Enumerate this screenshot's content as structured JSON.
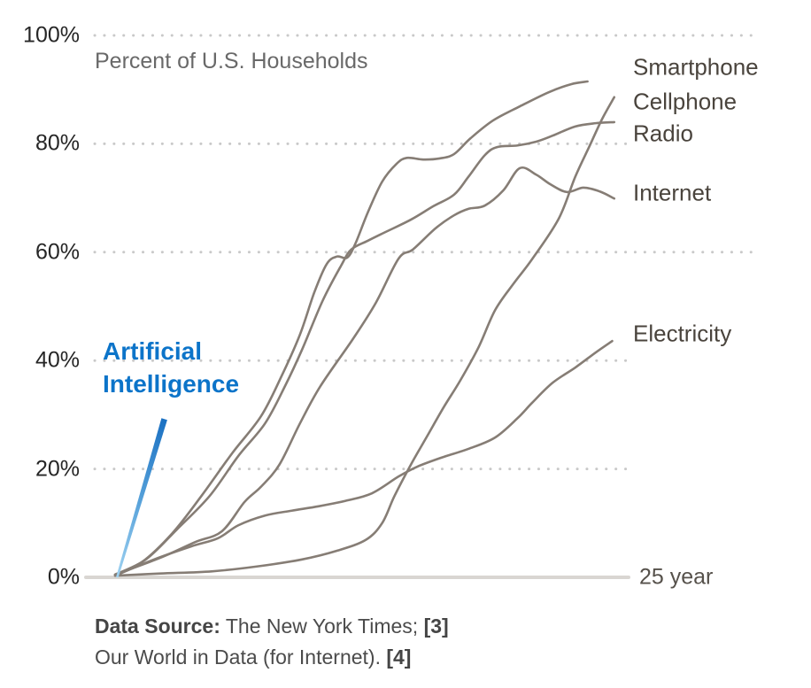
{
  "title": "Percent of U.S. Households",
  "x_axis": {
    "label": "25 year",
    "max_years": 25
  },
  "y_axis": {
    "ticks": [
      {
        "label": "0%",
        "pct": 0
      },
      {
        "label": "20%",
        "pct": 20
      },
      {
        "label": "40%",
        "pct": 40
      },
      {
        "label": "60%",
        "pct": 60
      },
      {
        "label": "80%",
        "pct": 80
      },
      {
        "label": "100%",
        "pct": 100
      }
    ]
  },
  "gridlines": [
    {
      "pct": 100,
      "extent": "wide"
    },
    {
      "pct": 80,
      "extent": "plot"
    },
    {
      "pct": 60,
      "extent": "wide"
    },
    {
      "pct": 40,
      "extent": "plot"
    },
    {
      "pct": 20,
      "extent": "plot"
    }
  ],
  "colors": {
    "line_gray": "#867d75",
    "baseline": "#d9d6d2",
    "grid_dot": "#c9c9c9",
    "ai_text": "#0c74c9",
    "ai_gradient": [
      "#9fd2f1",
      "#55a0d9",
      "#1a70c2"
    ]
  },
  "ai_label": {
    "line1": "Artificial",
    "line2": "Intelligence"
  },
  "right_labels": [
    {
      "text": "Smartphone",
      "pct": 94.1
    },
    {
      "text": "Cellphone",
      "pct": 87.7
    },
    {
      "text": "Radio",
      "pct": 81.9
    },
    {
      "text": "Internet",
      "pct": 70.9
    },
    {
      "text": "Electricity",
      "pct": 44.9
    }
  ],
  "source": {
    "bold1": "Data Source:",
    "text1": " The New York Times; ",
    "ref1": "[3]",
    "text2": "Our World in Data (for Internet). ",
    "ref2": "[4]"
  },
  "chart_data": {
    "type": "line",
    "title": "Percent of U.S. Households",
    "xlabel": "years since introduction (axis spans 25 years)",
    "ylabel": "percent of U.S. households",
    "x_range": [
      0,
      25
    ],
    "y_range": [
      0,
      100
    ],
    "grid": "dotted horizontal",
    "legend_position": "right edge, inline labels",
    "series": [
      {
        "name": "Artificial Intelligence",
        "style": "thick blue gradient",
        "points": [
          [
            0.1,
            0
          ],
          [
            2.4,
            29.2
          ]
        ]
      },
      {
        "name": "Smartphone",
        "style": "gray",
        "points": [
          [
            0,
            0.5
          ],
          [
            1.3,
            2.8
          ],
          [
            2.8,
            8.2
          ],
          [
            4.2,
            15
          ],
          [
            5.7,
            22.9
          ],
          [
            7.1,
            29.7
          ],
          [
            8.1,
            37.1
          ],
          [
            9,
            44.8
          ],
          [
            9.7,
            52.6
          ],
          [
            10.3,
            57.8
          ],
          [
            10.8,
            59.2
          ],
          [
            11.3,
            59
          ],
          [
            11.7,
            61.6
          ],
          [
            12.3,
            67.3
          ],
          [
            13,
            73
          ],
          [
            13.7,
            76.3
          ],
          [
            14.2,
            77.4
          ],
          [
            15,
            77.1
          ],
          [
            15.8,
            77.3
          ],
          [
            16.5,
            78.1
          ],
          [
            17.3,
            81
          ],
          [
            18.4,
            84.3
          ],
          [
            19.7,
            86.9
          ],
          [
            21.1,
            89.5
          ],
          [
            22.2,
            91
          ],
          [
            23,
            91.5
          ]
        ]
      },
      {
        "name": "Cellphone",
        "style": "gray",
        "points": [
          [
            0,
            0.3
          ],
          [
            2.2,
            0.7
          ],
          [
            4.7,
            1.1
          ],
          [
            6.9,
            2
          ],
          [
            9.1,
            3.3
          ],
          [
            10.8,
            4.9
          ],
          [
            12.2,
            6.9
          ],
          [
            13,
            10
          ],
          [
            13.6,
            15
          ],
          [
            14.4,
            20.8
          ],
          [
            15.2,
            26.1
          ],
          [
            16,
            31.4
          ],
          [
            16.8,
            36.3
          ],
          [
            17.7,
            42.5
          ],
          [
            18.5,
            49.3
          ],
          [
            19.4,
            54.2
          ],
          [
            20.3,
            58.7
          ],
          [
            21.6,
            66.2
          ],
          [
            22.4,
            73.9
          ],
          [
            23.1,
            79.6
          ],
          [
            23.7,
            84.5
          ],
          [
            24.3,
            88.6
          ]
        ]
      },
      {
        "name": "Radio",
        "style": "gray",
        "points": [
          [
            0,
            0.5
          ],
          [
            1.5,
            3.3
          ],
          [
            3,
            8.8
          ],
          [
            4.6,
            15
          ],
          [
            6,
            22.4
          ],
          [
            7.3,
            28.4
          ],
          [
            8.3,
            35.5
          ],
          [
            9.1,
            42
          ],
          [
            10.1,
            51
          ],
          [
            11,
            57.5
          ],
          [
            11.5,
            60.5
          ],
          [
            12.3,
            62.1
          ],
          [
            13.1,
            63.6
          ],
          [
            14.4,
            66
          ],
          [
            15.5,
            68.5
          ],
          [
            16.5,
            70.6
          ],
          [
            17.2,
            73.9
          ],
          [
            18,
            77.9
          ],
          [
            18.6,
            79.4
          ],
          [
            19.6,
            79.7
          ],
          [
            20.5,
            80.4
          ],
          [
            21.3,
            81.5
          ],
          [
            22.4,
            83.2
          ],
          [
            23.4,
            83.8
          ],
          [
            24.3,
            84
          ]
        ]
      },
      {
        "name": "Internet",
        "style": "gray",
        "points": [
          [
            0,
            0.5
          ],
          [
            2.2,
            3.6
          ],
          [
            3.9,
            6.5
          ],
          [
            5.2,
            8.5
          ],
          [
            6.3,
            13.9
          ],
          [
            7.1,
            16.7
          ],
          [
            8,
            20.8
          ],
          [
            9,
            28.4
          ],
          [
            10,
            35.3
          ],
          [
            11.6,
            44.1
          ],
          [
            12.7,
            50.7
          ],
          [
            13.8,
            58.8
          ],
          [
            14.5,
            60.5
          ],
          [
            15.6,
            64.4
          ],
          [
            16.5,
            66.8
          ],
          [
            17.2,
            68
          ],
          [
            18,
            68.6
          ],
          [
            18.9,
            71.4
          ],
          [
            19.7,
            75.5
          ],
          [
            20.5,
            74.3
          ],
          [
            21.2,
            72.5
          ],
          [
            22,
            71.1
          ],
          [
            22.8,
            71.9
          ],
          [
            23.6,
            71.2
          ],
          [
            24.3,
            69.9
          ]
        ]
      },
      {
        "name": "Electricity",
        "style": "gray",
        "points": [
          [
            0,
            0.3
          ],
          [
            1.9,
            3.3
          ],
          [
            3.7,
            5.7
          ],
          [
            5,
            7.2
          ],
          [
            6,
            9.6
          ],
          [
            7.3,
            11.4
          ],
          [
            8.6,
            12.3
          ],
          [
            9.9,
            13.1
          ],
          [
            11.2,
            14.1
          ],
          [
            12.5,
            15.5
          ],
          [
            13.8,
            18.6
          ],
          [
            14.7,
            20.4
          ],
          [
            15.9,
            22.1
          ],
          [
            17.2,
            23.7
          ],
          [
            18.5,
            25.8
          ],
          [
            19.6,
            29.4
          ],
          [
            20.3,
            32.2
          ],
          [
            21.3,
            35.9
          ],
          [
            22.4,
            38.7
          ],
          [
            23.4,
            41.5
          ],
          [
            24.2,
            43.6
          ]
        ]
      }
    ]
  }
}
